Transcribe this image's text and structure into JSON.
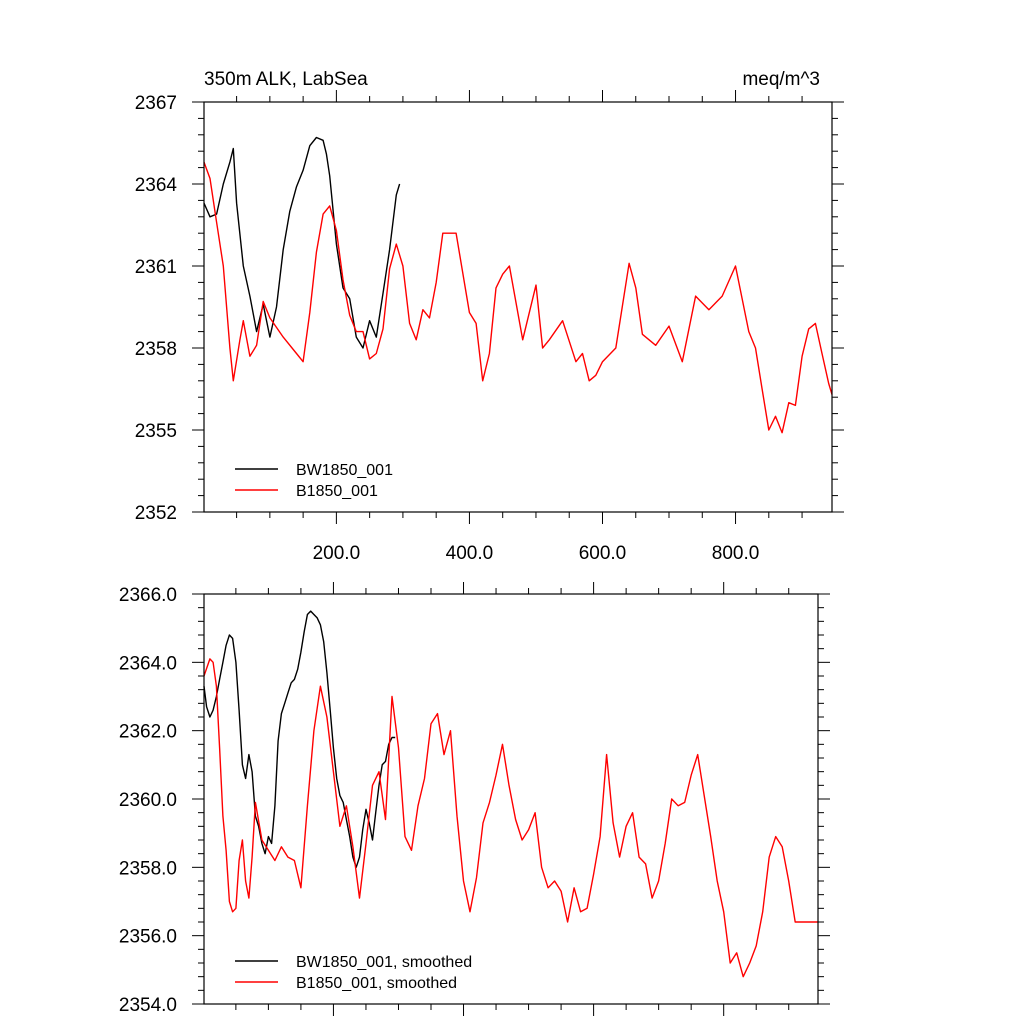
{
  "chart_data": [
    {
      "type": "line",
      "title": "350m ALK, LabSea",
      "units": "meq/m^3",
      "xlim": [
        1,
        945
      ],
      "ylim": [
        2352,
        2367
      ],
      "yticks": [
        {
          "value": 2352,
          "label": "2352"
        },
        {
          "value": 2355,
          "label": "2355"
        },
        {
          "value": 2358,
          "label": "2358"
        },
        {
          "value": 2361,
          "label": "2361"
        },
        {
          "value": 2364,
          "label": "2364"
        },
        {
          "value": 2367,
          "label": "2367"
        }
      ],
      "xticks": [
        {
          "value": 200,
          "label": "200.0"
        },
        {
          "value": 400,
          "label": "400.0"
        },
        {
          "value": 600,
          "label": "600.0"
        },
        {
          "value": 800,
          "label": "800.0"
        }
      ],
      "legend_position": "bottom-left",
      "grid": false,
      "series": [
        {
          "name": "BW1850_001",
          "color": "#000000",
          "x": [
            1,
            10,
            20,
            30,
            40,
            45,
            50,
            60,
            70,
            80,
            90,
            100,
            110,
            120,
            130,
            140,
            150,
            160,
            170,
            180,
            185,
            190,
            200,
            210,
            220,
            230,
            240,
            250,
            260,
            270,
            280,
            290,
            295
          ],
          "y": [
            2363.3,
            2362.8,
            2362.9,
            2364.0,
            2364.8,
            2365.3,
            2363.3,
            2361.0,
            2359.9,
            2358.6,
            2359.6,
            2358.4,
            2359.5,
            2361.6,
            2363.0,
            2363.9,
            2364.5,
            2365.4,
            2365.7,
            2365.6,
            2365.1,
            2364.3,
            2361.8,
            2360.2,
            2359.8,
            2358.4,
            2358.0,
            2359.0,
            2358.4,
            2360.0,
            2361.6,
            2363.6,
            2364.0
          ]
        },
        {
          "name": "B1850_001",
          "color": "#ff0000",
          "x": [
            1,
            10,
            20,
            30,
            40,
            45,
            55,
            60,
            70,
            80,
            90,
            100,
            120,
            140,
            150,
            160,
            170,
            180,
            190,
            200,
            210,
            220,
            230,
            240,
            250,
            260,
            270,
            280,
            290,
            300,
            310,
            320,
            330,
            340,
            350,
            360,
            380,
            400,
            410,
            420,
            430,
            440,
            450,
            460,
            480,
            500,
            510,
            520,
            540,
            560,
            570,
            580,
            590,
            600,
            620,
            640,
            650,
            660,
            680,
            700,
            720,
            740,
            760,
            780,
            800,
            820,
            830,
            840,
            850,
            860,
            870,
            880,
            890,
            900,
            910,
            920,
            930,
            940,
            945
          ],
          "y": [
            2364.8,
            2364.2,
            2362.6,
            2361.0,
            2358.0,
            2356.8,
            2358.3,
            2359.0,
            2357.7,
            2358.1,
            2359.7,
            2359.1,
            2358.4,
            2357.8,
            2357.5,
            2359.3,
            2361.5,
            2362.9,
            2363.2,
            2362.3,
            2360.5,
            2359.2,
            2358.6,
            2358.6,
            2357.6,
            2357.8,
            2358.7,
            2360.9,
            2361.8,
            2361.0,
            2358.9,
            2358.3,
            2359.4,
            2359.1,
            2360.4,
            2362.2,
            2362.2,
            2359.3,
            2358.9,
            2356.8,
            2357.8,
            2360.2,
            2360.7,
            2361.0,
            2358.3,
            2360.3,
            2358.0,
            2358.3,
            2359.0,
            2357.5,
            2357.8,
            2356.8,
            2357.0,
            2357.5,
            2358.0,
            2361.1,
            2360.2,
            2358.5,
            2358.1,
            2358.8,
            2357.5,
            2359.9,
            2359.4,
            2359.9,
            2361.0,
            2358.6,
            2358.0,
            2356.5,
            2355.0,
            2355.5,
            2354.9,
            2356.0,
            2355.9,
            2357.7,
            2358.7,
            2358.9,
            2357.8,
            2356.7,
            2356.3
          ]
        }
      ]
    },
    {
      "type": "line",
      "xlim": [
        1,
        945
      ],
      "ylim": [
        2354.0,
        2366.0
      ],
      "yticks": [
        {
          "value": 2354,
          "label": "2354.0"
        },
        {
          "value": 2356,
          "label": "2356.0"
        },
        {
          "value": 2358,
          "label": "2358.0"
        },
        {
          "value": 2360,
          "label": "2360.0"
        },
        {
          "value": 2362,
          "label": "2362.0"
        },
        {
          "value": 2364,
          "label": "2364.0"
        },
        {
          "value": 2366,
          "label": "2366.0"
        }
      ],
      "xticks": [
        {
          "value": 200,
          "label": ""
        },
        {
          "value": 400,
          "label": ""
        },
        {
          "value": 600,
          "label": ""
        },
        {
          "value": 800,
          "label": ""
        }
      ],
      "legend_position": "bottom-left",
      "grid": false,
      "series": [
        {
          "name": "BW1850_001, smoothed",
          "color": "#000000",
          "x": [
            1,
            5,
            10,
            15,
            20,
            25,
            30,
            35,
            40,
            45,
            50,
            55,
            60,
            65,
            70,
            75,
            80,
            85,
            90,
            95,
            100,
            105,
            110,
            115,
            120,
            125,
            130,
            135,
            140,
            145,
            150,
            155,
            160,
            165,
            170,
            175,
            180,
            185,
            190,
            195,
            200,
            205,
            210,
            215,
            220,
            225,
            230,
            235,
            240,
            245,
            250,
            255,
            260,
            265,
            270,
            275,
            280,
            285,
            290,
            295
          ],
          "y": [
            2363.3,
            2362.7,
            2362.4,
            2362.6,
            2363.0,
            2363.5,
            2364.0,
            2364.5,
            2364.8,
            2364.7,
            2364.0,
            2362.6,
            2361.0,
            2360.6,
            2361.3,
            2360.8,
            2359.5,
            2359.2,
            2358.7,
            2358.4,
            2358.9,
            2358.7,
            2359.8,
            2361.7,
            2362.5,
            2362.8,
            2363.1,
            2363.4,
            2363.5,
            2363.8,
            2364.3,
            2364.9,
            2365.4,
            2365.5,
            2365.4,
            2365.3,
            2365.1,
            2364.6,
            2363.7,
            2362.6,
            2361.5,
            2360.6,
            2360.1,
            2359.9,
            2359.4,
            2358.9,
            2358.3,
            2358.0,
            2358.3,
            2359.1,
            2359.7,
            2359.3,
            2358.8,
            2359.6,
            2360.4,
            2361.0,
            2361.1,
            2361.6,
            2361.8,
            2361.8
          ]
        },
        {
          "name": "B1850_001, smoothed",
          "color": "#ff0000",
          "x": [
            1,
            10,
            15,
            20,
            25,
            30,
            35,
            40,
            45,
            50,
            55,
            60,
            65,
            70,
            75,
            80,
            90,
            100,
            110,
            120,
            130,
            140,
            150,
            160,
            170,
            180,
            190,
            200,
            210,
            220,
            230,
            240,
            250,
            260,
            270,
            280,
            290,
            300,
            310,
            320,
            330,
            340,
            350,
            360,
            370,
            380,
            390,
            400,
            410,
            420,
            430,
            440,
            450,
            460,
            470,
            480,
            490,
            500,
            510,
            520,
            530,
            540,
            550,
            560,
            570,
            580,
            590,
            600,
            610,
            620,
            630,
            640,
            650,
            660,
            670,
            680,
            690,
            700,
            710,
            720,
            730,
            740,
            750,
            760,
            770,
            780,
            790,
            800,
            810,
            820,
            830,
            840,
            850,
            860,
            870,
            880,
            890,
            900,
            910,
            920,
            930,
            940,
            945
          ],
          "y": [
            2363.6,
            2364.1,
            2364.0,
            2363.3,
            2361.5,
            2359.5,
            2358.5,
            2357.0,
            2356.7,
            2356.8,
            2358.2,
            2358.8,
            2357.6,
            2357.1,
            2358.3,
            2359.9,
            2358.8,
            2358.5,
            2358.2,
            2358.6,
            2358.3,
            2358.2,
            2357.4,
            2359.8,
            2362.0,
            2363.3,
            2362.4,
            2360.8,
            2359.2,
            2359.8,
            2358.6,
            2357.1,
            2358.7,
            2360.4,
            2360.8,
            2359.4,
            2363.0,
            2361.5,
            2358.9,
            2358.5,
            2359.8,
            2360.6,
            2362.2,
            2362.5,
            2361.3,
            2362.0,
            2359.5,
            2357.6,
            2356.7,
            2357.7,
            2359.3,
            2359.9,
            2360.7,
            2361.6,
            2360.4,
            2359.4,
            2358.8,
            2359.1,
            2359.6,
            2358.0,
            2357.4,
            2357.6,
            2357.3,
            2356.4,
            2357.4,
            2356.7,
            2356.8,
            2357.8,
            2358.9,
            2361.3,
            2359.3,
            2358.3,
            2359.2,
            2359.6,
            2358.3,
            2358.1,
            2357.1,
            2357.6,
            2358.7,
            2360.0,
            2359.8,
            2359.9,
            2360.7,
            2361.3,
            2360.1,
            2358.9,
            2357.6,
            2356.7,
            2355.2,
            2355.5,
            2354.8,
            2355.2,
            2355.7,
            2356.7,
            2358.3,
            2358.9,
            2358.6,
            2357.6,
            2356.4,
            2356.4,
            2356.4,
            2356.4,
            2356.4
          ]
        }
      ]
    }
  ]
}
